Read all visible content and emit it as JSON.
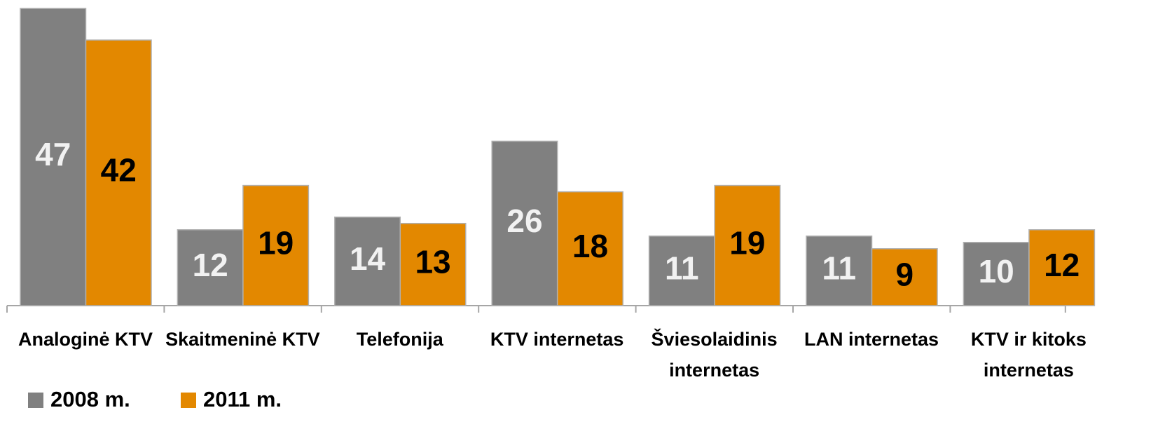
{
  "chart_data": {
    "type": "bar",
    "categories": [
      "Analoginė KTV",
      "Skaitmeninė KTV",
      "Telefonija",
      "KTV internetas",
      "Šviesolaidinis internetas",
      "LAN internetas",
      "KTV ir kitoks internetas"
    ],
    "series": [
      {
        "name": "2008 m.",
        "color": "#808080",
        "values": [
          47,
          12,
          14,
          26,
          11,
          11,
          10
        ]
      },
      {
        "name": "2011 m.",
        "color": "#e38800",
        "values": [
          42,
          19,
          13,
          18,
          19,
          9,
          12
        ]
      }
    ],
    "ylim": [
      0,
      47
    ],
    "grid": false,
    "legend": "bottom-left"
  }
}
